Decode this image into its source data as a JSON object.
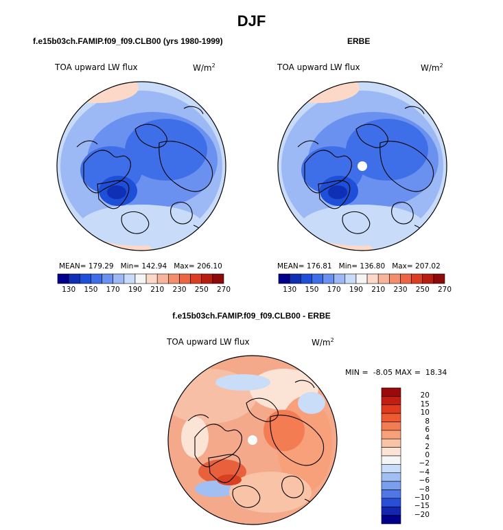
{
  "page_title": "DJF",
  "chart_data": [
    {
      "type": "heatmap",
      "projection": "north-polar-stereographic",
      "title": "f.e15b03ch.FAMIP.f09_f09.CLB00 (yrs 1980-1999)",
      "left_label": "TOA upward LW flux",
      "right_label": "W/m",
      "right_label_sup": "2",
      "stats": {
        "mean_label": "MEAN=",
        "mean": "179.29",
        "min_label": "Min=",
        "min": "142.94",
        "max_label": "Max=",
        "max": "206.10"
      },
      "colorbar": {
        "orientation": "horizontal",
        "levels": [
          "130",
          "150",
          "170",
          "190",
          "210",
          "230",
          "250",
          "270"
        ],
        "colors": [
          "#00008b",
          "#0f2fb5",
          "#1e4fd8",
          "#3f6fe8",
          "#6a90f0",
          "#9cb8f5",
          "#c8dcfa",
          "#f5f5f5",
          "#fbd8c7",
          "#f7b59b",
          "#f28e6c",
          "#ec6643",
          "#dc3e22",
          "#b81e10",
          "#8c0a0a"
        ]
      }
    },
    {
      "type": "heatmap",
      "projection": "north-polar-stereographic",
      "title": "ERBE",
      "left_label": "TOA upward LW flux",
      "right_label": "W/m",
      "right_label_sup": "2",
      "stats": {
        "mean_label": "MEAN=",
        "mean": "176.81",
        "min_label": "Min=",
        "min": "136.80",
        "max_label": "Max=",
        "max": "207.02"
      },
      "colorbar": {
        "orientation": "horizontal",
        "levels": [
          "130",
          "150",
          "170",
          "190",
          "210",
          "230",
          "250",
          "270"
        ],
        "colors": [
          "#00008b",
          "#0f2fb5",
          "#1e4fd8",
          "#3f6fe8",
          "#6a90f0",
          "#9cb8f5",
          "#c8dcfa",
          "#f5f5f5",
          "#fbd8c7",
          "#f7b59b",
          "#f28e6c",
          "#ec6643",
          "#dc3e22",
          "#b81e10",
          "#8c0a0a"
        ]
      }
    },
    {
      "type": "heatmap",
      "projection": "north-polar-stereographic",
      "title": "f.e15b03ch.FAMIP.f09_f09.CLB00 - ERBE",
      "left_label": "TOA upward LW flux",
      "right_label": "W/m",
      "right_label_sup": "2",
      "stats": {
        "min_label": "MIN =",
        "min": "-8.05",
        "max_label": "MAX =",
        "max": "18.34"
      },
      "colorbar": {
        "orientation": "vertical",
        "levels": [
          "20",
          "15",
          "10",
          "8",
          "6",
          "4",
          "2",
          "0",
          "−2",
          "−4",
          "−6",
          "−8",
          "−10",
          "−15",
          "−20"
        ],
        "colors": [
          "#9b0a0a",
          "#c41e12",
          "#e03b1e",
          "#ef5a30",
          "#f47c52",
          "#f7a07a",
          "#f9c3a8",
          "#fbe3d6",
          "#f5f5f5",
          "#c9dcf8",
          "#a2bff3",
          "#7a9fee",
          "#4f78e6",
          "#2a4fd6",
          "#1226b0",
          "#00008b"
        ]
      }
    }
  ]
}
